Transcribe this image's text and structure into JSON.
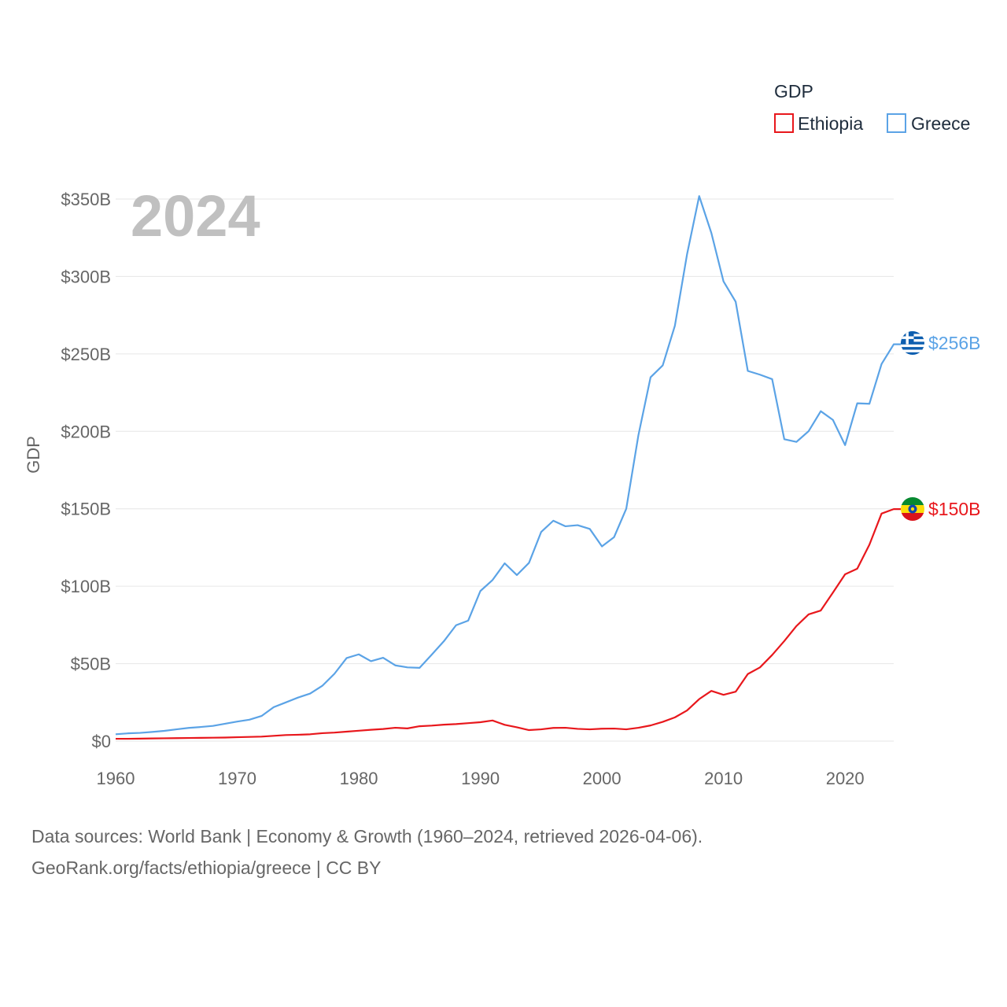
{
  "colors": {
    "ethiopia": "#e8171c",
    "greece": "#5ba3e6",
    "grid": "#e6e6e6",
    "text": "#666666"
  },
  "chart_data": {
    "type": "line",
    "title": "GDP",
    "ylabel": "GDP",
    "xlabel": "",
    "year_label": "2024",
    "xlim": [
      1960,
      2024
    ],
    "ylim": [
      0,
      350
    ],
    "x_ticks": [
      1960,
      1970,
      1980,
      1990,
      2000,
      2010,
      2020
    ],
    "y_ticks": [
      0,
      50,
      100,
      150,
      200,
      250,
      300,
      350
    ],
    "y_tick_labels": [
      "$0",
      "$50B",
      "$100B",
      "$150B",
      "$200B",
      "$250B",
      "$300B",
      "$350B"
    ],
    "legend": {
      "title": "GDP",
      "position": "top-right",
      "entries": [
        "Ethiopia",
        "Greece"
      ]
    },
    "x": [
      1960,
      1961,
      1962,
      1963,
      1964,
      1965,
      1966,
      1967,
      1968,
      1969,
      1970,
      1971,
      1972,
      1973,
      1974,
      1975,
      1976,
      1977,
      1978,
      1979,
      1980,
      1981,
      1982,
      1983,
      1984,
      1985,
      1986,
      1987,
      1988,
      1989,
      1990,
      1991,
      1992,
      1993,
      1994,
      1995,
      1996,
      1997,
      1998,
      1999,
      2000,
      2001,
      2002,
      2003,
      2004,
      2005,
      2006,
      2007,
      2008,
      2009,
      2010,
      2011,
      2012,
      2013,
      2014,
      2015,
      2016,
      2017,
      2018,
      2019,
      2020,
      2021,
      2022,
      2023,
      2024
    ],
    "series": [
      {
        "name": "Greece",
        "color_key": "greece",
        "end_label": "$256B",
        "values": [
          4.4,
          5.0,
          5.3,
          5.9,
          6.6,
          7.6,
          8.5,
          9.1,
          9.8,
          11.2,
          12.6,
          13.8,
          16.2,
          21.9,
          25.0,
          28.1,
          30.7,
          35.7,
          43.5,
          53.6,
          56.0,
          51.6,
          53.8,
          48.9,
          47.6,
          47.3,
          55.8,
          64.5,
          74.8,
          77.8,
          96.9,
          104.0,
          114.8,
          107.2,
          115.1,
          135.0,
          142.3,
          138.7,
          139.4,
          137.0,
          125.7,
          131.7,
          150.0,
          197.5,
          234.9,
          242.6,
          268.2,
          314.3,
          351.9,
          328.1,
          296.8,
          283.7,
          239.0,
          236.6,
          233.7,
          194.9,
          193.2,
          200.1,
          213.0,
          207.4,
          191.1,
          218.1,
          217.8,
          243.5,
          256.2
        ]
      },
      {
        "name": "Ethiopia",
        "color_key": "ethiopia",
        "end_label": "$150B",
        "values": [
          1.5,
          1.5,
          1.6,
          1.7,
          1.8,
          1.9,
          2.0,
          2.1,
          2.2,
          2.3,
          2.5,
          2.7,
          2.9,
          3.4,
          3.9,
          4.1,
          4.4,
          5.1,
          5.5,
          6.1,
          6.7,
          7.3,
          7.8,
          8.6,
          8.2,
          9.6,
          10.0,
          10.6,
          11.0,
          11.6,
          12.2,
          13.3,
          10.5,
          8.9,
          7.1,
          7.6,
          8.5,
          8.6,
          7.9,
          7.6,
          8.0,
          8.1,
          7.6,
          8.6,
          10.1,
          12.4,
          15.3,
          19.8,
          27.1,
          32.4,
          29.9,
          31.9,
          43.3,
          47.6,
          55.6,
          64.6,
          74.3,
          81.8,
          84.3,
          95.9,
          107.7,
          111.3,
          126.8,
          146.9,
          149.8
        ]
      }
    ]
  },
  "source": {
    "line1": "Data sources: World Bank | Economy & Growth (1960–2024, retrieved 2026-04-06).",
    "line2": "GeoRank.org/facts/ethiopia/greece | CC BY"
  }
}
